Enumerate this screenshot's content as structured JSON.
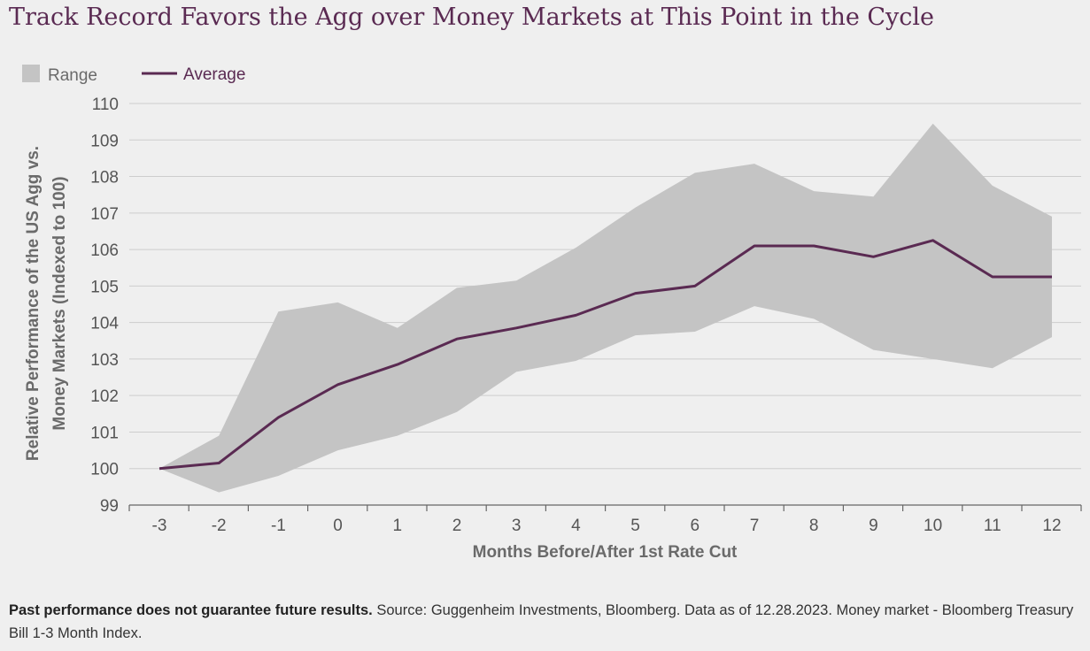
{
  "chart_data": {
    "type": "area",
    "title": "Track Record Favors the Agg over Money Markets at This Point in the Cycle",
    "xlabel": "Months Before/After 1st Rate Cut",
    "ylabel_line1": "Relative Performance of the US Agg vs.",
    "ylabel_line2": "Money Markets (Indexed to 100)",
    "x": [
      -3,
      -2,
      -1,
      0,
      1,
      2,
      3,
      4,
      5,
      6,
      7,
      8,
      9,
      10,
      11,
      12
    ],
    "ylim": [
      99,
      110
    ],
    "yticks": [
      99,
      100,
      101,
      102,
      103,
      104,
      105,
      106,
      107,
      108,
      109,
      110
    ],
    "grid": true,
    "legend_position": "top-left",
    "legend": {
      "range_label": "Range",
      "average_label": "Average"
    },
    "series": [
      {
        "name": "Range",
        "type": "band",
        "color": "#c4c4c4",
        "upper": [
          100.0,
          100.9,
          104.3,
          104.55,
          103.85,
          104.95,
          105.15,
          106.05,
          107.15,
          108.1,
          108.35,
          107.6,
          107.45,
          109.45,
          107.75,
          106.9
        ],
        "lower": [
          100.0,
          99.35,
          99.8,
          100.5,
          100.9,
          101.55,
          102.65,
          102.95,
          103.65,
          103.75,
          104.45,
          104.1,
          103.25,
          103.0,
          102.75,
          103.6
        ]
      },
      {
        "name": "Average",
        "type": "line",
        "color": "#5a2a52",
        "values": [
          100.0,
          100.15,
          101.4,
          102.3,
          102.85,
          103.55,
          103.85,
          104.2,
          104.8,
          105.0,
          106.1,
          106.1,
          105.8,
          106.25,
          105.25,
          105.25
        ]
      }
    ]
  },
  "footnote": {
    "bold": "Past performance does not guarantee future results.",
    "text": " Source: Guggenheim Investments, Bloomberg. Data as of 12.28.2023. Money market - Bloomberg Treasury Bill 1-3 Month Index."
  },
  "colors": {
    "title": "#5a2a52",
    "grid": "#cdcdcd",
    "axis": "#666666",
    "background": "#efefef"
  }
}
